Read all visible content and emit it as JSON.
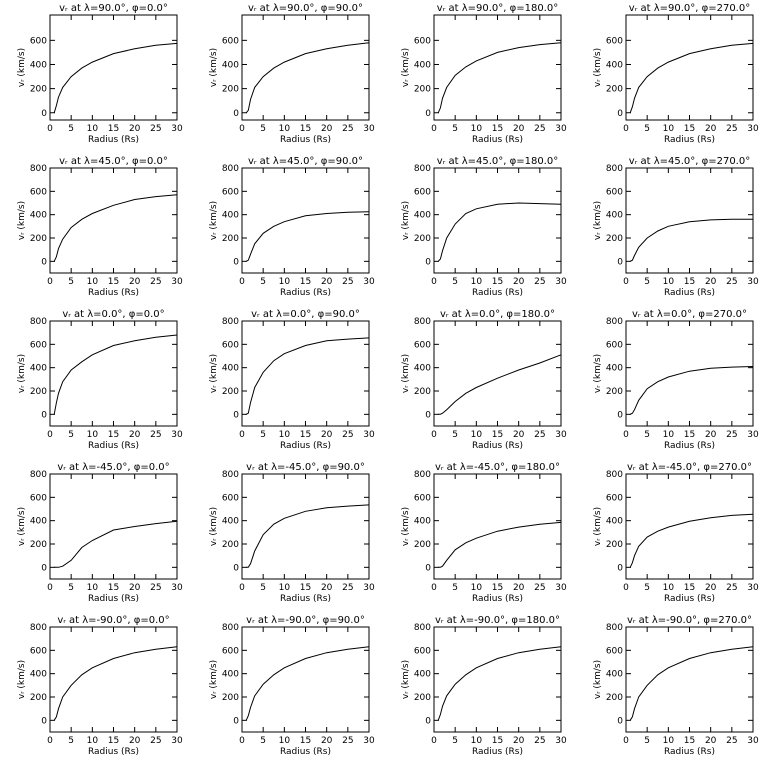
{
  "chart_data": [
    {
      "type": "line",
      "title": "vᵣ at λ=90.0°, φ=0.0°",
      "x_label": "Radius (Rs)",
      "y_label": "vᵣ (km/s)",
      "x": [
        1,
        1.5,
        2,
        3,
        5,
        7.5,
        10,
        15,
        20,
        25,
        30
      ],
      "series": [
        {
          "color": "#000000",
          "values": [
            0,
            60,
            130,
            210,
            300,
            370,
            420,
            490,
            530,
            560,
            575
          ]
        }
      ],
      "xlim": [
        0,
        30
      ],
      "xticks": [
        0,
        5,
        10,
        15,
        20,
        25,
        30
      ],
      "ylim": [
        -60,
        810
      ],
      "yticks": [
        0,
        200,
        400,
        600
      ]
    },
    {
      "type": "line",
      "title": "vᵣ at λ=90.0°, φ=90.0°",
      "x_label": "Radius (Rs)",
      "y_label": "vᵣ (km/s)",
      "x": [
        1,
        1.5,
        2,
        3,
        5,
        7.5,
        10,
        15,
        20,
        25,
        30
      ],
      "series": [
        {
          "color": "#000000",
          "values": [
            0,
            20,
            110,
            210,
            300,
            370,
            420,
            490,
            530,
            560,
            580
          ]
        }
      ],
      "xlim": [
        0,
        30
      ],
      "xticks": [
        0,
        5,
        10,
        15,
        20,
        25,
        30
      ],
      "ylim": [
        -60,
        810
      ],
      "yticks": [
        0,
        200,
        400,
        600
      ]
    },
    {
      "type": "line",
      "title": "vᵣ at λ=90.0°, φ=180.0°",
      "x_label": "Radius (Rs)",
      "y_label": "vᵣ (km/s)",
      "x": [
        1,
        1.5,
        2,
        3,
        5,
        7.5,
        10,
        15,
        20,
        25,
        30
      ],
      "series": [
        {
          "color": "#000000",
          "values": [
            0,
            40,
            120,
            210,
            310,
            380,
            430,
            500,
            540,
            565,
            580
          ]
        }
      ],
      "xlim": [
        0,
        30
      ],
      "xticks": [
        0,
        5,
        10,
        15,
        20,
        25,
        30
      ],
      "ylim": [
        -60,
        810
      ],
      "yticks": [
        0,
        200,
        400,
        600
      ]
    },
    {
      "type": "line",
      "title": "vᵣ at λ=90.0°, φ=270.0°",
      "x_label": "Radius (Rs)",
      "y_label": "vᵣ (km/s)",
      "x": [
        1,
        1.5,
        2,
        3,
        5,
        7.5,
        10,
        15,
        20,
        25,
        30
      ],
      "series": [
        {
          "color": "#000000",
          "values": [
            0,
            50,
            120,
            210,
            300,
            370,
            420,
            490,
            530,
            560,
            575
          ]
        }
      ],
      "xlim": [
        0,
        30
      ],
      "xticks": [
        0,
        5,
        10,
        15,
        20,
        25,
        30
      ],
      "ylim": [
        -60,
        810
      ],
      "yticks": [
        0,
        200,
        400,
        600
      ]
    },
    {
      "type": "line",
      "title": "vᵣ at λ=45.0°, φ=0.0°",
      "x_label": "Radius (Rs)",
      "y_label": "vᵣ (km/s)",
      "x": [
        1,
        1.5,
        2,
        3,
        5,
        7.5,
        10,
        15,
        20,
        25,
        30
      ],
      "series": [
        {
          "color": "#000000",
          "values": [
            0,
            40,
            110,
            190,
            290,
            360,
            410,
            480,
            530,
            555,
            570
          ]
        }
      ],
      "xlim": [
        0,
        30
      ],
      "xticks": [
        0,
        5,
        10,
        15,
        20,
        25,
        30
      ],
      "ylim": [
        -100,
        800
      ],
      "yticks": [
        0,
        200,
        400,
        600,
        800
      ]
    },
    {
      "type": "line",
      "title": "vᵣ at λ=45.0°, φ=90.0°",
      "x_label": "Radius (Rs)",
      "y_label": "vᵣ (km/s)",
      "x": [
        1,
        1.5,
        2,
        3,
        5,
        7.5,
        10,
        15,
        20,
        25,
        30
      ],
      "series": [
        {
          "color": "#000000",
          "values": [
            0,
            10,
            60,
            150,
            240,
            300,
            340,
            390,
            410,
            420,
            425
          ]
        }
      ],
      "xlim": [
        0,
        30
      ],
      "xticks": [
        0,
        5,
        10,
        15,
        20,
        25,
        30
      ],
      "ylim": [
        -100,
        800
      ],
      "yticks": [
        0,
        200,
        400,
        600,
        800
      ]
    },
    {
      "type": "line",
      "title": "vᵣ at λ=45.0°, φ=180.0°",
      "x_label": "Radius (Rs)",
      "y_label": "vᵣ (km/s)",
      "x": [
        1,
        1.5,
        2,
        3,
        5,
        7.5,
        10,
        15,
        20,
        25,
        30
      ],
      "series": [
        {
          "color": "#000000",
          "values": [
            0,
            20,
            90,
            200,
            320,
            410,
            450,
            490,
            500,
            495,
            490
          ]
        }
      ],
      "xlim": [
        0,
        30
      ],
      "xticks": [
        0,
        5,
        10,
        15,
        20,
        25,
        30
      ],
      "ylim": [
        -100,
        800
      ],
      "yticks": [
        0,
        200,
        400,
        600,
        800
      ]
    },
    {
      "type": "line",
      "title": "vᵣ at λ=45.0°, φ=270.0°",
      "x_label": "Radius (Rs)",
      "y_label": "vᵣ (km/s)",
      "x": [
        1,
        1.5,
        2,
        3,
        5,
        7.5,
        10,
        15,
        20,
        25,
        30
      ],
      "series": [
        {
          "color": "#000000",
          "values": [
            0,
            10,
            50,
            120,
            200,
            260,
            300,
            340,
            355,
            360,
            360
          ]
        }
      ],
      "xlim": [
        0,
        30
      ],
      "xticks": [
        0,
        5,
        10,
        15,
        20,
        25,
        30
      ],
      "ylim": [
        -100,
        800
      ],
      "yticks": [
        0,
        200,
        400,
        600,
        800
      ]
    },
    {
      "type": "line",
      "title": "vᵣ at λ=0.0°, φ=0.0°",
      "x_label": "Radius (Rs)",
      "y_label": "vᵣ (km/s)",
      "x": [
        1,
        1.5,
        2,
        3,
        5,
        7.5,
        10,
        15,
        20,
        25,
        30
      ],
      "series": [
        {
          "color": "#000000",
          "values": [
            0,
            100,
            180,
            280,
            380,
            450,
            510,
            590,
            630,
            660,
            680
          ]
        }
      ],
      "xlim": [
        0,
        30
      ],
      "xticks": [
        0,
        5,
        10,
        15,
        20,
        25,
        30
      ],
      "ylim": [
        -100,
        800
      ],
      "yticks": [
        0,
        200,
        400,
        600,
        800
      ]
    },
    {
      "type": "line",
      "title": "vᵣ at λ=0.0°, φ=90.0°",
      "x_label": "Radius (Rs)",
      "y_label": "vᵣ (km/s)",
      "x": [
        1,
        1.5,
        2,
        3,
        5,
        7.5,
        10,
        15,
        20,
        25,
        30
      ],
      "series": [
        {
          "color": "#000000",
          "values": [
            0,
            10,
            100,
            230,
            360,
            460,
            520,
            590,
            630,
            645,
            655
          ]
        }
      ],
      "xlim": [
        0,
        30
      ],
      "xticks": [
        0,
        5,
        10,
        15,
        20,
        25,
        30
      ],
      "ylim": [
        -100,
        800
      ],
      "yticks": [
        0,
        200,
        400,
        600,
        800
      ]
    },
    {
      "type": "line",
      "title": "vᵣ at λ=0.0°, φ=180.0°",
      "x_label": "Radius (Rs)",
      "y_label": "vᵣ (km/s)",
      "x": [
        1,
        1.5,
        2,
        3,
        5,
        7.5,
        10,
        15,
        20,
        25,
        30
      ],
      "series": [
        {
          "color": "#000000",
          "values": [
            0,
            0,
            10,
            40,
            110,
            180,
            230,
            310,
            380,
            440,
            510
          ]
        }
      ],
      "xlim": [
        0,
        30
      ],
      "xticks": [
        0,
        5,
        10,
        15,
        20,
        25,
        30
      ],
      "ylim": [
        -100,
        800
      ],
      "yticks": [
        0,
        200,
        400,
        600,
        800
      ]
    },
    {
      "type": "line",
      "title": "vᵣ at λ=0.0°, φ=270.0°",
      "x_label": "Radius (Rs)",
      "y_label": "vᵣ (km/s)",
      "x": [
        1,
        1.5,
        2,
        3,
        5,
        7.5,
        10,
        15,
        20,
        25,
        30
      ],
      "series": [
        {
          "color": "#000000",
          "values": [
            0,
            10,
            40,
            120,
            220,
            280,
            320,
            370,
            395,
            405,
            410
          ]
        }
      ],
      "xlim": [
        0,
        30
      ],
      "xticks": [
        0,
        5,
        10,
        15,
        20,
        25,
        30
      ],
      "ylim": [
        -100,
        800
      ],
      "yticks": [
        0,
        200,
        400,
        600,
        800
      ]
    },
    {
      "type": "line",
      "title": "vᵣ at λ=-45.0°, φ=0.0°",
      "x_label": "Radius (Rs)",
      "y_label": "vᵣ (km/s)",
      "x": [
        1,
        1.5,
        2,
        3,
        5,
        7.5,
        10,
        15,
        20,
        25,
        30
      ],
      "series": [
        {
          "color": "#000000",
          "values": [
            0,
            0,
            0,
            10,
            60,
            170,
            230,
            320,
            350,
            375,
            395
          ]
        }
      ],
      "xlim": [
        0,
        30
      ],
      "xticks": [
        0,
        5,
        10,
        15,
        20,
        25,
        30
      ],
      "ylim": [
        -100,
        800
      ],
      "yticks": [
        0,
        200,
        400,
        600,
        800
      ]
    },
    {
      "type": "line",
      "title": "vᵣ at λ=-45.0°, φ=90.0°",
      "x_label": "Radius (Rs)",
      "y_label": "vᵣ (km/s)",
      "x": [
        1,
        1.5,
        2,
        3,
        5,
        7.5,
        10,
        15,
        20,
        25,
        30
      ],
      "series": [
        {
          "color": "#000000",
          "values": [
            0,
            0,
            30,
            140,
            280,
            370,
            420,
            480,
            510,
            525,
            535
          ]
        }
      ],
      "xlim": [
        0,
        30
      ],
      "xticks": [
        0,
        5,
        10,
        15,
        20,
        25,
        30
      ],
      "ylim": [
        -100,
        800
      ],
      "yticks": [
        0,
        200,
        400,
        600,
        800
      ]
    },
    {
      "type": "line",
      "title": "vᵣ at λ=-45.0°, φ=180.0°",
      "x_label": "Radius (Rs)",
      "y_label": "vᵣ (km/s)",
      "x": [
        1,
        1.5,
        2,
        3,
        5,
        7.5,
        10,
        15,
        20,
        25,
        30
      ],
      "series": [
        {
          "color": "#000000",
          "values": [
            0,
            0,
            10,
            60,
            150,
            210,
            250,
            310,
            345,
            370,
            385
          ]
        }
      ],
      "xlim": [
        0,
        30
      ],
      "xticks": [
        0,
        5,
        10,
        15,
        20,
        25,
        30
      ],
      "ylim": [
        -100,
        800
      ],
      "yticks": [
        0,
        200,
        400,
        600,
        800
      ]
    },
    {
      "type": "line",
      "title": "vᵣ at λ=-45.0°, φ=270.0°",
      "x_label": "Radius (Rs)",
      "y_label": "vᵣ (km/s)",
      "x": [
        1,
        1.5,
        2,
        3,
        5,
        7.5,
        10,
        15,
        20,
        25,
        30
      ],
      "series": [
        {
          "color": "#000000",
          "values": [
            0,
            40,
            100,
            180,
            260,
            310,
            345,
            395,
            425,
            445,
            455
          ]
        }
      ],
      "xlim": [
        0,
        30
      ],
      "xticks": [
        0,
        5,
        10,
        15,
        20,
        25,
        30
      ],
      "ylim": [
        -100,
        800
      ],
      "yticks": [
        0,
        200,
        400,
        600,
        800
      ]
    },
    {
      "type": "line",
      "title": "vᵣ at λ=-90.0°, φ=0.0°",
      "x_label": "Radius (Rs)",
      "y_label": "vᵣ (km/s)",
      "x": [
        1,
        1.5,
        2,
        3,
        5,
        7.5,
        10,
        15,
        20,
        25,
        30
      ],
      "series": [
        {
          "color": "#000000",
          "values": [
            0,
            30,
            100,
            200,
            300,
            390,
            450,
            530,
            580,
            610,
            630
          ]
        }
      ],
      "xlim": [
        0,
        30
      ],
      "xticks": [
        0,
        5,
        10,
        15,
        20,
        25,
        30
      ],
      "ylim": [
        -100,
        800
      ],
      "yticks": [
        0,
        200,
        400,
        600,
        800
      ]
    },
    {
      "type": "line",
      "title": "vᵣ at λ=-90.0°, φ=90.0°",
      "x_label": "Radius (Rs)",
      "y_label": "vᵣ (km/s)",
      "x": [
        1,
        1.5,
        2,
        3,
        5,
        7.5,
        10,
        15,
        20,
        25,
        30
      ],
      "series": [
        {
          "color": "#000000",
          "values": [
            0,
            40,
            110,
            210,
            310,
            390,
            450,
            530,
            580,
            610,
            630
          ]
        }
      ],
      "xlim": [
        0,
        30
      ],
      "xticks": [
        0,
        5,
        10,
        15,
        20,
        25,
        30
      ],
      "ylim": [
        -100,
        800
      ],
      "yticks": [
        0,
        200,
        400,
        600,
        800
      ]
    },
    {
      "type": "line",
      "title": "vᵣ at λ=-90.0°, φ=180.0°",
      "x_label": "Radius (Rs)",
      "y_label": "vᵣ (km/s)",
      "x": [
        1,
        1.5,
        2,
        3,
        5,
        7.5,
        10,
        15,
        20,
        25,
        30
      ],
      "series": [
        {
          "color": "#000000",
          "values": [
            0,
            50,
            120,
            210,
            310,
            390,
            450,
            530,
            580,
            610,
            630
          ]
        }
      ],
      "xlim": [
        0,
        30
      ],
      "xticks": [
        0,
        5,
        10,
        15,
        20,
        25,
        30
      ],
      "ylim": [
        -100,
        800
      ],
      "yticks": [
        0,
        200,
        400,
        600,
        800
      ]
    },
    {
      "type": "line",
      "title": "vᵣ at λ=-90.0°, φ=270.0°",
      "x_label": "Radius (Rs)",
      "y_label": "vᵣ (km/s)",
      "x": [
        1,
        1.5,
        2,
        3,
        5,
        7.5,
        10,
        15,
        20,
        25,
        30
      ],
      "series": [
        {
          "color": "#000000",
          "values": [
            0,
            30,
            100,
            200,
            300,
            390,
            450,
            530,
            580,
            610,
            630
          ]
        }
      ],
      "xlim": [
        0,
        30
      ],
      "xticks": [
        0,
        5,
        10,
        15,
        20,
        25,
        30
      ],
      "ylim": [
        -100,
        800
      ],
      "yticks": [
        0,
        200,
        400,
        600,
        800
      ]
    }
  ]
}
